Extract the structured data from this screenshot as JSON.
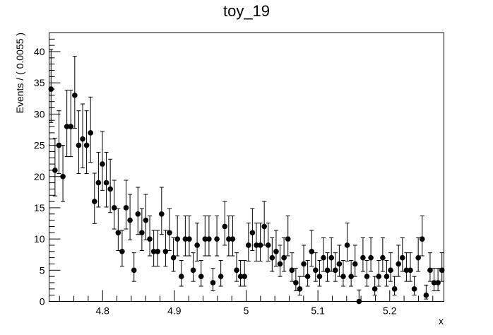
{
  "chart_data": {
    "type": "scatter",
    "title": "toy_19",
    "xlabel": "x",
    "ylabel": "Events / ( 0.0055 )",
    "xlim": [
      4.7255,
      5.2755
    ],
    "ylim": [
      0,
      43
    ],
    "x_ticks": [
      4.8,
      4.9,
      5.0,
      5.1,
      5.2
    ],
    "x_tick_labels": [
      "4.8",
      "4.9",
      "5",
      "5.1",
      "5.2"
    ],
    "y_ticks": [
      0,
      5,
      10,
      15,
      20,
      25,
      30,
      35,
      40
    ],
    "y_tick_labels": [
      "0",
      "5",
      "10",
      "15",
      "20",
      "25",
      "30",
      "35",
      "40"
    ],
    "grid": false,
    "legend": "none",
    "marker_color": "#000000",
    "error_bars": "poisson",
    "series": [
      {
        "x_start": 4.72825,
        "bin_width": 0.0055,
        "values": [
          34,
          21,
          25,
          20,
          28,
          28,
          33,
          25,
          26,
          25,
          27,
          16,
          19,
          22,
          19,
          18,
          15,
          11,
          8,
          15,
          13,
          5,
          14,
          11,
          13,
          10,
          8,
          8,
          14,
          8,
          11,
          7,
          10,
          4,
          10,
          10,
          5,
          9,
          4,
          10,
          10,
          3,
          10,
          4,
          12,
          10,
          10,
          5,
          4,
          4,
          9,
          11,
          9,
          9,
          12,
          9,
          7,
          8,
          6,
          7,
          10,
          5,
          3,
          2,
          6,
          4,
          8,
          5,
          4,
          7,
          5,
          7,
          5,
          6,
          4,
          9,
          4,
          6,
          0,
          7,
          4,
          7,
          2,
          4,
          7,
          4,
          5,
          2,
          6,
          7,
          5,
          5,
          2,
          7,
          10,
          1,
          5,
          3,
          3,
          5
        ]
      }
    ]
  }
}
